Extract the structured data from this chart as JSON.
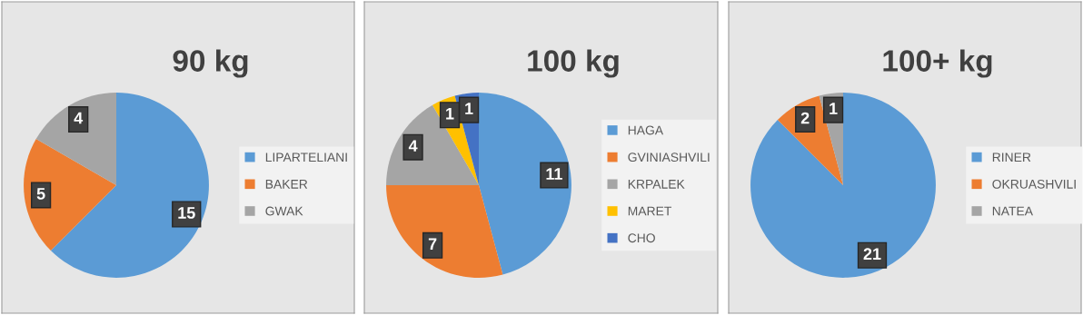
{
  "chart_data": [
    {
      "type": "pie",
      "title": "90 kg",
      "categories": [
        "LIPARTELIANI",
        "BAKER",
        "GWAK"
      ],
      "values": [
        15,
        5,
        4
      ],
      "colors": [
        "#5b9bd5",
        "#ed7d31",
        "#a5a5a5"
      ],
      "data_labels": true,
      "legend": "right"
    },
    {
      "type": "pie",
      "title": "100 kg",
      "categories": [
        "HAGA",
        "GVINIASHVILI",
        "KRPALEK",
        "MARET",
        "CHO"
      ],
      "values": [
        11,
        7,
        4,
        1,
        1
      ],
      "colors": [
        "#5b9bd5",
        "#ed7d31",
        "#a5a5a5",
        "#ffc000",
        "#4472c4"
      ],
      "data_labels": true,
      "legend": "right"
    },
    {
      "type": "pie",
      "title": "100+ kg",
      "categories": [
        "RINER",
        "OKRUASHVILI",
        "NATEA"
      ],
      "values": [
        21,
        2,
        1
      ],
      "colors": [
        "#5b9bd5",
        "#ed7d31",
        "#a5a5a5"
      ],
      "data_labels": true,
      "legend": "right"
    }
  ]
}
